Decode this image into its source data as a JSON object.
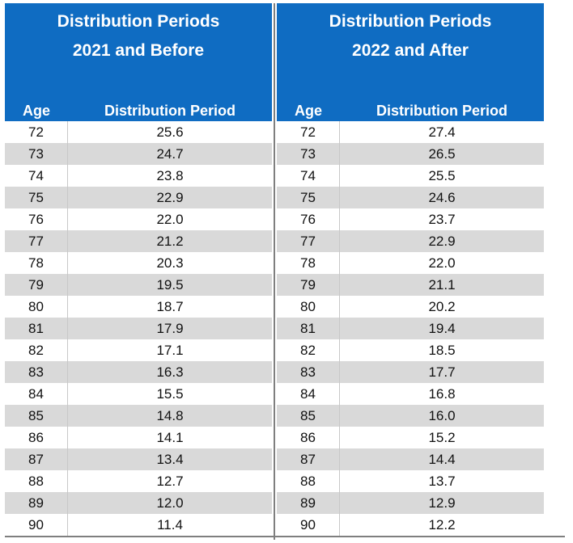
{
  "left": {
    "title_line1": "Distribution Periods",
    "title_line2": "2021 and Before",
    "col_age": "Age",
    "col_period": "Distribution Period",
    "rows": [
      {
        "age": "72",
        "period": "25.6"
      },
      {
        "age": "73",
        "period": "24.7"
      },
      {
        "age": "74",
        "period": "23.8"
      },
      {
        "age": "75",
        "period": "22.9"
      },
      {
        "age": "76",
        "period": "22.0"
      },
      {
        "age": "77",
        "period": "21.2"
      },
      {
        "age": "78",
        "period": "20.3"
      },
      {
        "age": "79",
        "period": "19.5"
      },
      {
        "age": "80",
        "period": "18.7"
      },
      {
        "age": "81",
        "period": "17.9"
      },
      {
        "age": "82",
        "period": "17.1"
      },
      {
        "age": "83",
        "period": "16.3"
      },
      {
        "age": "84",
        "period": "15.5"
      },
      {
        "age": "85",
        "period": "14.8"
      },
      {
        "age": "86",
        "period": "14.1"
      },
      {
        "age": "87",
        "period": "13.4"
      },
      {
        "age": "88",
        "period": "12.7"
      },
      {
        "age": "89",
        "period": "12.0"
      },
      {
        "age": "90",
        "period": "11.4"
      }
    ]
  },
  "right": {
    "title_line1": "Distribution Periods",
    "title_line2": "2022 and After",
    "col_age": "Age",
    "col_period": "Distribution Period",
    "rows": [
      {
        "age": "72",
        "period": "27.4"
      },
      {
        "age": "73",
        "period": "26.5"
      },
      {
        "age": "74",
        "period": "25.5"
      },
      {
        "age": "75",
        "period": "24.6"
      },
      {
        "age": "76",
        "period": "23.7"
      },
      {
        "age": "77",
        "period": "22.9"
      },
      {
        "age": "78",
        "period": "22.0"
      },
      {
        "age": "79",
        "period": "21.1"
      },
      {
        "age": "80",
        "period": "20.2"
      },
      {
        "age": "81",
        "period": "19.4"
      },
      {
        "age": "82",
        "period": "18.5"
      },
      {
        "age": "83",
        "period": "17.7"
      },
      {
        "age": "84",
        "period": "16.8"
      },
      {
        "age": "85",
        "period": "16.0"
      },
      {
        "age": "86",
        "period": "15.2"
      },
      {
        "age": "87",
        "period": "14.4"
      },
      {
        "age": "88",
        "period": "13.7"
      },
      {
        "age": "89",
        "period": "12.9"
      },
      {
        "age": "90",
        "period": "12.2"
      }
    ]
  },
  "colors": {
    "header_bg": "#0f6cc2",
    "header_text": "#ffffff",
    "stripe": "#d9d9d9"
  }
}
